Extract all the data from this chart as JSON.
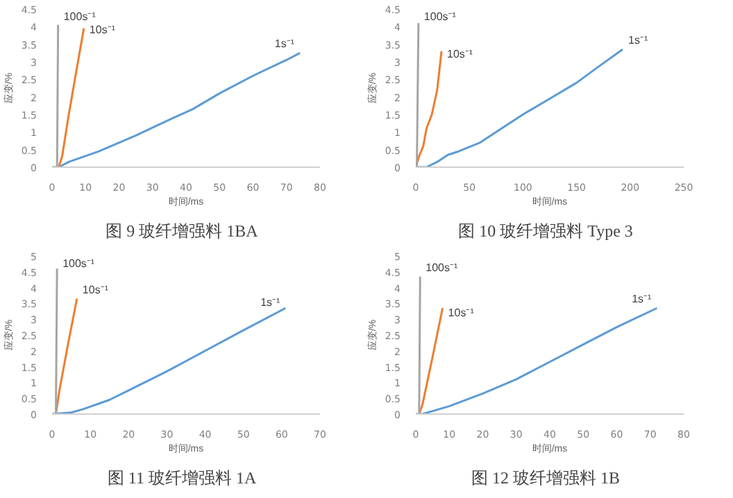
{
  "chart_data": [
    {
      "type": "line",
      "title": "图 9  玻纤增强料  1BA",
      "xlabel": "时间/ms",
      "ylabel": "应变/%",
      "xlim": [
        0,
        80
      ],
      "xticks": [
        0,
        10,
        20,
        30,
        40,
        50,
        60,
        70,
        80
      ],
      "ylim": [
        0,
        4.5
      ],
      "yticks": [
        0,
        0.5,
        1,
        1.5,
        2,
        2.5,
        3,
        3.5,
        4,
        4.5
      ],
      "grid": false,
      "legend": false,
      "series": [
        {
          "name": "1s⁻¹",
          "color": "#5b9bd5",
          "x": [
            0,
            2,
            5,
            14,
            25,
            35,
            42,
            50,
            60,
            70,
            74
          ],
          "values": [
            0,
            0,
            0.15,
            0.45,
            0.9,
            1.35,
            1.65,
            2.1,
            2.6,
            3.05,
            3.25
          ]
        },
        {
          "name": "10s⁻¹",
          "color": "#ed7d31",
          "x": [
            1,
            2,
            3,
            5,
            7,
            9.5
          ],
          "values": [
            0,
            0,
            0.3,
            1.5,
            2.6,
            3.95
          ]
        },
        {
          "name": "100s⁻¹",
          "color": "#a5a5a5",
          "x": [
            1.5,
            1.8
          ],
          "values": [
            0,
            4.05
          ]
        }
      ]
    },
    {
      "type": "line",
      "title": "图 10  玻纤增强料  Type 3",
      "xlabel": "时间/ms",
      "ylabel": "应变/%",
      "xlim": [
        0,
        250
      ],
      "xticks": [
        0,
        50,
        100,
        150,
        200,
        250
      ],
      "ylim": [
        0,
        4.5
      ],
      "yticks": [
        0,
        0.5,
        1,
        1.5,
        2,
        2.5,
        3,
        3.5,
        4,
        4.5
      ],
      "grid": false,
      "legend": false,
      "series": [
        {
          "name": "1s⁻¹",
          "color": "#5b9bd5",
          "x": [
            0,
            10,
            20,
            30,
            40,
            60,
            80,
            100,
            125,
            150,
            170,
            193
          ],
          "values": [
            0,
            0,
            0.15,
            0.35,
            0.45,
            0.7,
            1.1,
            1.5,
            1.95,
            2.4,
            2.85,
            3.35
          ]
        },
        {
          "name": "10s⁻¹",
          "color": "#ed7d31",
          "x": [
            0,
            3,
            7,
            10,
            15,
            20,
            24
          ],
          "values": [
            0,
            0.3,
            0.6,
            1.1,
            1.5,
            2.2,
            3.3
          ]
        },
        {
          "name": "100s⁻¹",
          "color": "#a5a5a5",
          "x": [
            1,
            2.5
          ],
          "values": [
            0,
            4.1
          ]
        }
      ]
    },
    {
      "type": "line",
      "title": "图 11  玻纤增强料  1A",
      "xlabel": "时间/ms",
      "ylabel": "应变/%",
      "xlim": [
        0,
        70
      ],
      "xticks": [
        0,
        10,
        20,
        30,
        40,
        50,
        60,
        70
      ],
      "ylim": [
        0,
        5
      ],
      "yticks": [
        0,
        0.5,
        1,
        1.5,
        2,
        2.5,
        3,
        3.5,
        4,
        4.5,
        5
      ],
      "grid": false,
      "legend": false,
      "series": [
        {
          "name": "1s⁻¹",
          "color": "#5b9bd5",
          "x": [
            0,
            5,
            8,
            15,
            20,
            30,
            40,
            50,
            61
          ],
          "values": [
            0,
            0.05,
            0.15,
            0.45,
            0.75,
            1.35,
            2.0,
            2.65,
            3.35
          ]
        },
        {
          "name": "10s⁻¹",
          "color": "#ed7d31",
          "x": [
            1,
            2,
            4,
            6.5
          ],
          "values": [
            0,
            0.8,
            2.1,
            3.65
          ]
        },
        {
          "name": "100s⁻¹",
          "color": "#a5a5a5",
          "x": [
            1,
            1.3
          ],
          "values": [
            0,
            4.6
          ]
        }
      ]
    },
    {
      "type": "line",
      "title": "图 12  玻纤增强料  1B",
      "xlabel": "时间/ms",
      "ylabel": "应变/%",
      "xlim": [
        0,
        80
      ],
      "xticks": [
        0,
        10,
        20,
        30,
        40,
        50,
        60,
        70,
        80
      ],
      "ylim": [
        0,
        5
      ],
      "yticks": [
        0,
        0.5,
        1,
        1.5,
        2,
        2.5,
        3,
        3.5,
        4,
        4.5,
        5
      ],
      "grid": false,
      "legend": false,
      "series": [
        {
          "name": "1s⁻¹",
          "color": "#5b9bd5",
          "x": [
            0,
            2,
            10,
            20,
            30,
            40,
            50,
            60,
            72
          ],
          "values": [
            0,
            0,
            0.25,
            0.65,
            1.1,
            1.65,
            2.2,
            2.75,
            3.35
          ]
        },
        {
          "name": "10s⁻¹",
          "color": "#ed7d31",
          "x": [
            1,
            2,
            5,
            8
          ],
          "values": [
            0,
            0.3,
            1.8,
            3.35
          ]
        },
        {
          "name": "100s⁻¹",
          "color": "#a5a5a5",
          "x": [
            1,
            1.3
          ],
          "values": [
            0,
            4.35
          ]
        }
      ]
    }
  ]
}
